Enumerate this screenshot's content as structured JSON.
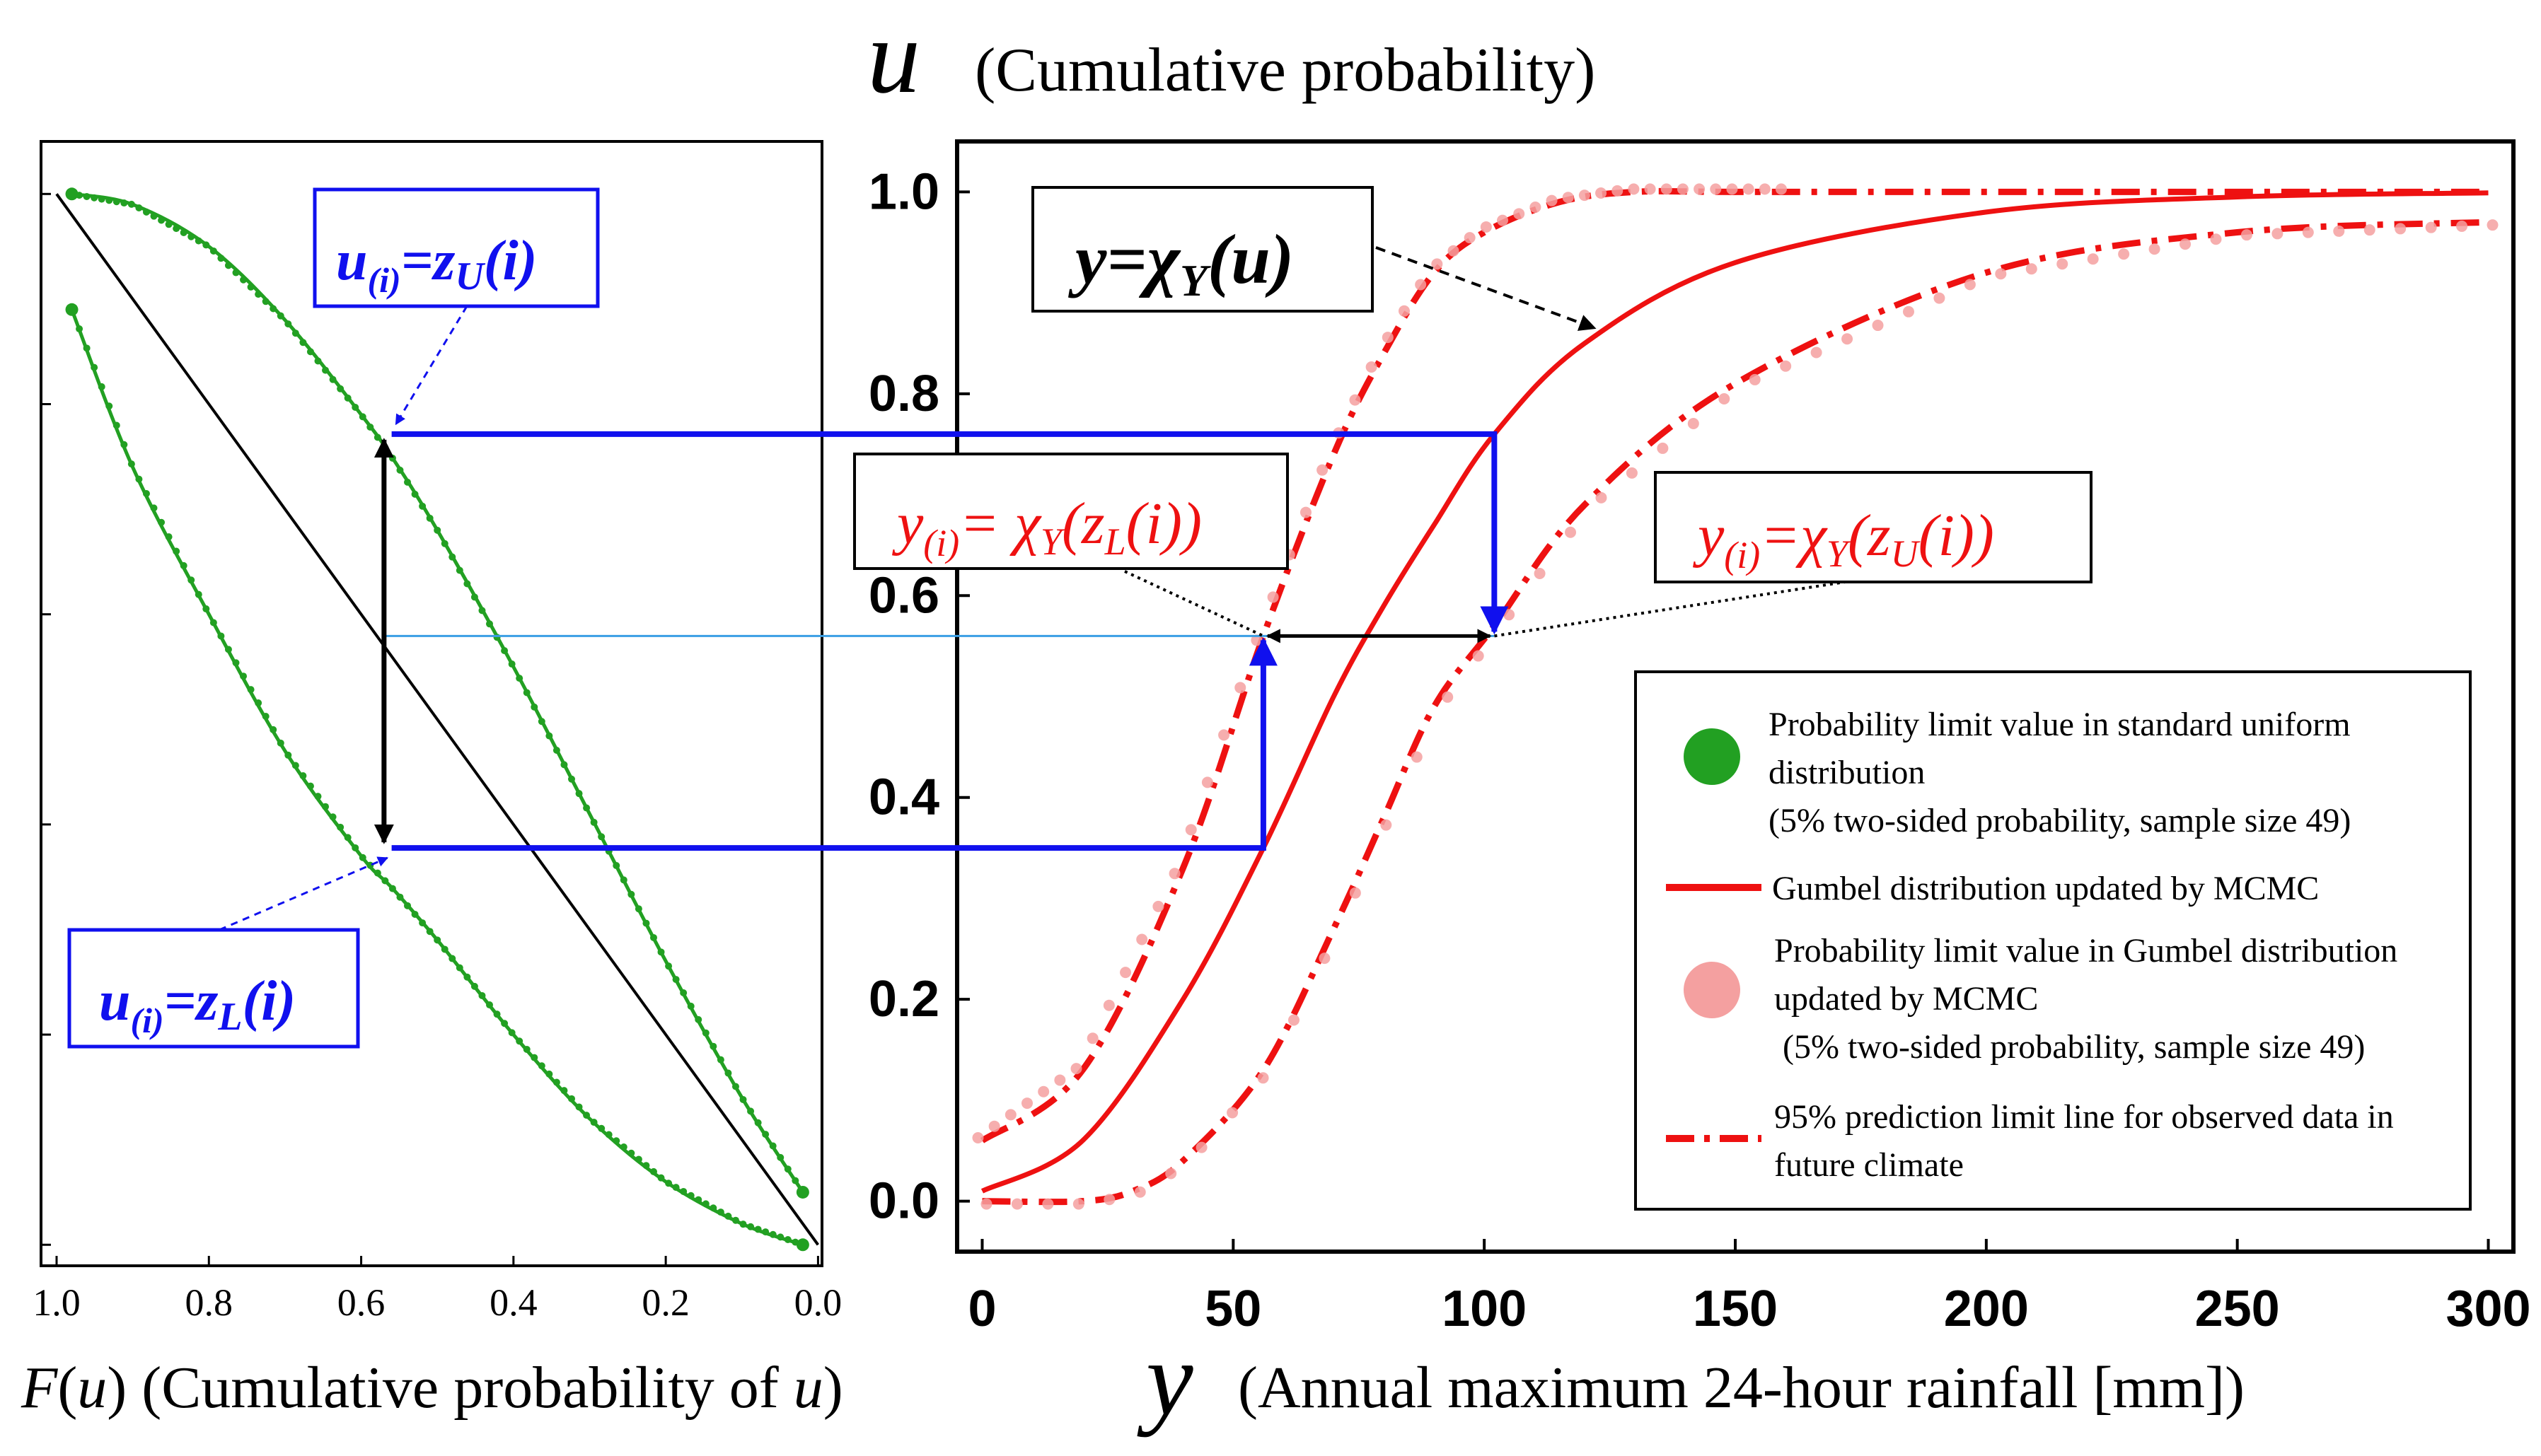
{
  "chart_data": [
    {
      "type": "line",
      "panel": "left",
      "title": "",
      "xlabel_var": "F",
      "xlabel_arg": "u",
      "xlabel_text": "(Cumulative probability of",
      "xlabel_tail_var": "u",
      "xlabel_tail_close": ")",
      "xlim": [
        1.0,
        0.0
      ],
      "ylim": [
        -0.02,
        1.05
      ],
      "x_ticks": [
        "1.0",
        "0.8",
        "0.6",
        "0.4",
        "0.2",
        "0.0"
      ],
      "x_tick_values": [
        1.0,
        0.8,
        0.6,
        0.4,
        0.2,
        0.0
      ],
      "y_gridless_tick_values": [
        0.0,
        0.2,
        0.4,
        0.6,
        0.8,
        1.0
      ],
      "sample_size": 49,
      "series": [
        {
          "name": "upper limit z_U",
          "color": "#22a022",
          "x": [
            0.98,
            0.9,
            0.8,
            0.7,
            0.6,
            0.56,
            0.5,
            0.4,
            0.3,
            0.2,
            0.1,
            0.02
          ],
          "y": [
            1.0,
            0.99,
            0.95,
            0.88,
            0.79,
            0.75,
            0.68,
            0.55,
            0.41,
            0.27,
            0.14,
            0.05
          ]
        },
        {
          "name": "lower limit z_L",
          "color": "#22a022",
          "x": [
            0.98,
            0.9,
            0.8,
            0.7,
            0.6,
            0.56,
            0.5,
            0.4,
            0.3,
            0.2,
            0.1,
            0.02
          ],
          "y": [
            0.89,
            0.74,
            0.6,
            0.47,
            0.37,
            0.34,
            0.29,
            0.2,
            0.12,
            0.06,
            0.02,
            0.0
          ]
        },
        {
          "name": "diagonal",
          "color": "#000000",
          "x": [
            1.0,
            0.0
          ],
          "y": [
            1.0,
            0.0
          ]
        }
      ],
      "annotations": [
        {
          "text_var": "u",
          "text_sub": "(i)",
          "text_eq": "=z",
          "text_sub2": "U",
          "text_tail": "(i)"
        },
        {
          "text_var": "u",
          "text_sub": "(i)",
          "text_eq": "=z",
          "text_sub2": "L",
          "text_tail": "(i)"
        }
      ]
    },
    {
      "type": "line",
      "panel": "right",
      "title_var": "u",
      "title_text": "(Cumulative probability)",
      "xlabel_var": "y",
      "xlabel_text": "(Annual maximum 24-hour rainfall [mm])",
      "xlim": [
        -5,
        305
      ],
      "ylim": [
        -0.05,
        1.05
      ],
      "x_ticks": [
        "0",
        "50",
        "100",
        "150",
        "200",
        "250",
        "300"
      ],
      "x_tick_values": [
        0,
        50,
        100,
        150,
        200,
        250,
        300
      ],
      "y_ticks": [
        "0.0",
        "0.2",
        "0.4",
        "0.6",
        "0.8",
        "1.0"
      ],
      "y_tick_values": [
        0.0,
        0.2,
        0.4,
        0.6,
        0.8,
        1.0
      ],
      "series": [
        {
          "name": "Gumbel distribution updated by MCMC",
          "color": "#ee1111",
          "style": "solid",
          "x": [
            0,
            20,
            40,
            56,
            70,
            80,
            90,
            102,
            120,
            150,
            200,
            250,
            300
          ],
          "y": [
            0.01,
            0.06,
            0.2,
            0.35,
            0.5,
            0.59,
            0.67,
            0.76,
            0.85,
            0.93,
            0.98,
            0.995,
            0.999
          ]
        },
        {
          "name": "95% prediction limit (upper)",
          "color": "#ee1111",
          "style": "dashdot",
          "x": [
            0,
            20,
            40,
            56,
            70,
            80,
            90,
            100,
            115,
            130,
            150,
            200,
            300
          ],
          "y": [
            0.06,
            0.13,
            0.33,
            0.56,
            0.74,
            0.84,
            0.92,
            0.96,
            0.99,
            1.0,
            1.0,
            1.0,
            1.0
          ]
        },
        {
          "name": "95% prediction limit (lower)",
          "color": "#ee1111",
          "style": "dashdot",
          "x": [
            0,
            20,
            30,
            40,
            56,
            70,
            80,
            90,
            102,
            120,
            150,
            200,
            250,
            300
          ],
          "y": [
            0.0,
            0.0,
            0.01,
            0.04,
            0.13,
            0.27,
            0.38,
            0.49,
            0.57,
            0.69,
            0.81,
            0.92,
            0.96,
            0.97
          ]
        }
      ],
      "legend": [
        {
          "marker": "dot-green",
          "lines": [
            "Probability limit value in standard uniform",
            "distribution",
            "(5% two-sided probability, sample size 49)"
          ]
        },
        {
          "marker": "line-red",
          "lines": [
            "Gumbel distribution updated by MCMC"
          ]
        },
        {
          "marker": "dot-pink",
          "lines": [
            "Probability limit value in Gumbel distribution",
            "updated by MCMC",
            " (5% two-sided probability, sample size 49)"
          ]
        },
        {
          "marker": "dashdot-red",
          "lines": [
            "95% prediction limit line for observed data in",
            "future climate"
          ]
        }
      ],
      "annotations": {
        "chi": {
          "y": "y",
          "eq": "=",
          "chi": "χ",
          "sub": "Y",
          "arg": "(u)"
        },
        "left": {
          "y": "y",
          "sub": "(i)",
          "eq": "= χ",
          "chisub": "Y",
          "arg_open": "(z",
          "argsub": "L",
          "arg_close": "(i))"
        },
        "right": {
          "y": "y",
          "sub": "(i)",
          "eq": "=χ",
          "chisub": "Y",
          "arg_open": "(z",
          "argsub": "U",
          "arg_close": "(i))"
        }
      },
      "colors": {
        "blue": "#1010ee",
        "green": "#22a022",
        "red": "#ee1111",
        "pink": "#f4a0a0",
        "lightblue": "#3a9ee4"
      }
    }
  ]
}
